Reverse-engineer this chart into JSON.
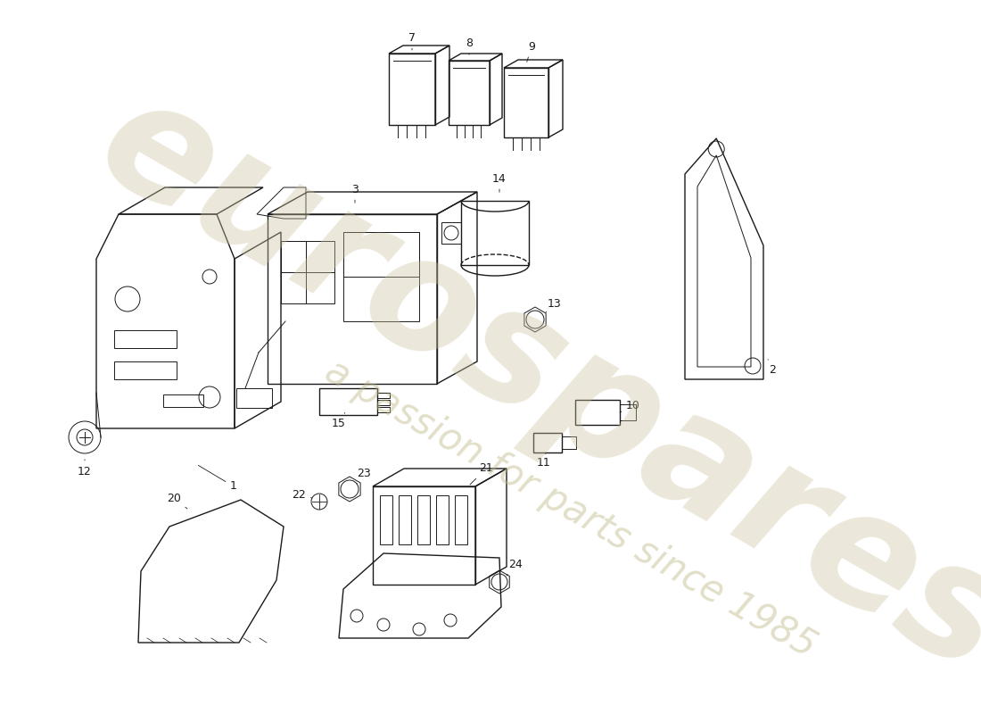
{
  "background_color": "#ffffff",
  "line_color": "#1a1a1a",
  "wm_color1": "#ccc4a0",
  "wm_color2": "#c0b888",
  "wm_text1": "eurospares",
  "wm_text2": "a passion for parts since 1985",
  "label_fs": 9,
  "figw": 11.0,
  "figh": 8.0,
  "dpi": 100,
  "xmin": 0,
  "xmax": 1100,
  "ymin": 0,
  "ymax": 800
}
